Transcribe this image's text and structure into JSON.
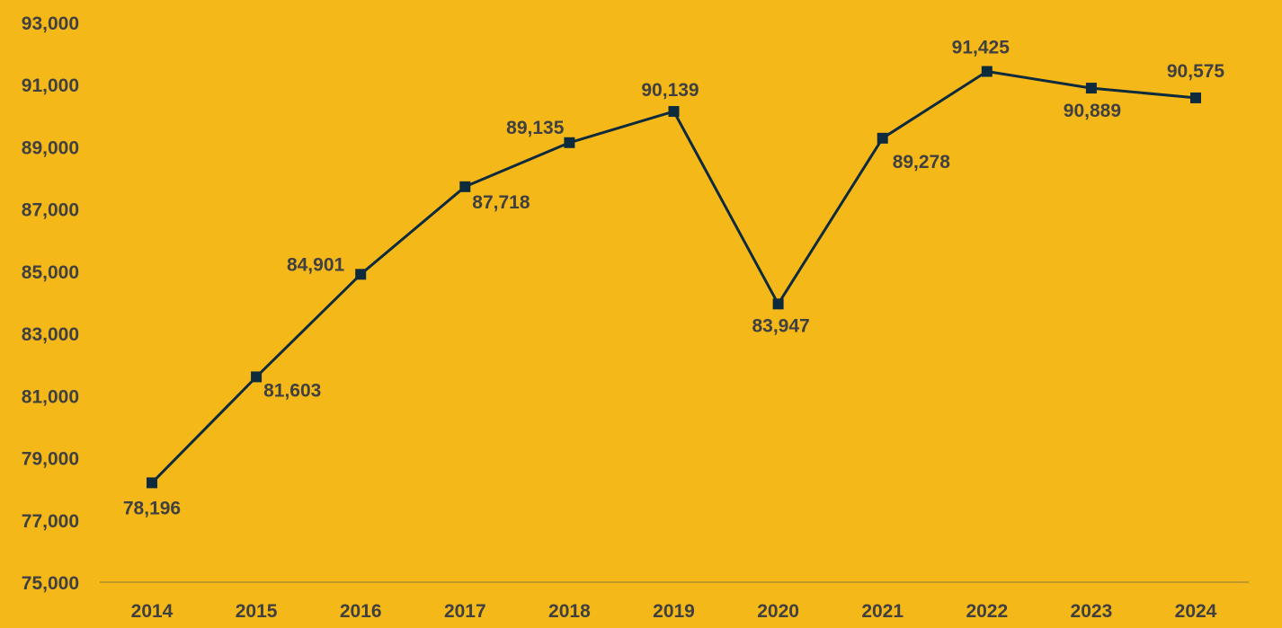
{
  "chart_data": {
    "type": "line",
    "title": "",
    "xlabel": "",
    "ylabel": "",
    "categories": [
      "2014",
      "2015",
      "2016",
      "2017",
      "2018",
      "2019",
      "2020",
      "2021",
      "2022",
      "2023",
      "2024"
    ],
    "series": [
      {
        "values": [
          78196,
          81603,
          84901,
          87718,
          89135,
          90139,
          83947,
          89278,
          91425,
          90889,
          90575
        ]
      }
    ],
    "data_labels": [
      "78,196",
      "81,603",
      "84,901",
      "87,718",
      "89,135",
      "90,139",
      "83,947",
      "89,278",
      "91,425",
      "90,889",
      "90,575"
    ],
    "ylim": [
      75000,
      93000
    ],
    "y_ticks": [
      75000,
      77000,
      79000,
      81000,
      83000,
      85000,
      87000,
      89000,
      91000,
      93000
    ],
    "y_tick_labels": [
      "75,000",
      "77,000",
      "79,000",
      "81,000",
      "83,000",
      "85,000",
      "87,000",
      "89,000",
      "91,000",
      "93,000"
    ],
    "grid": false,
    "legend": "none",
    "marker": "square"
  },
  "colors": {
    "background": "#F5B819",
    "line": "#0E2A3D",
    "marker": "#0E2A3D",
    "text": "#404040",
    "axis": "#8C7A3A"
  }
}
